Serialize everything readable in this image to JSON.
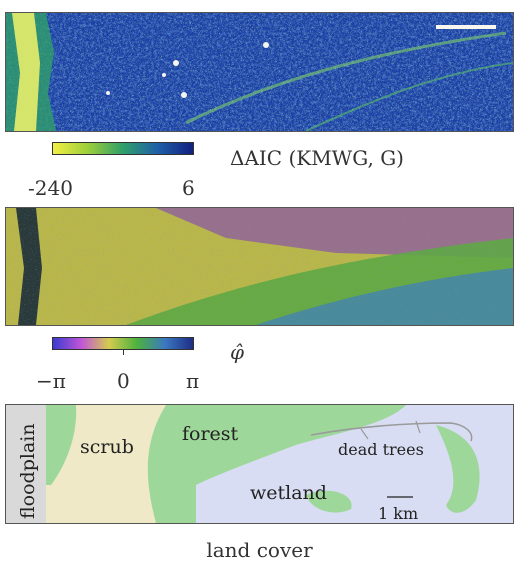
{
  "aic_panel": {
    "colorbar": {
      "min_label": "-240",
      "max_label": "6",
      "title": "ΔAIC (KMWG, G)",
      "colors": [
        "#f2ef44",
        "#9ccf3a",
        "#2f9f6a",
        "#1f5fa8",
        "#10207e"
      ]
    }
  },
  "phi_panel": {
    "colorbar": {
      "tick_labels": [
        "−π",
        "0",
        "π"
      ],
      "title": "φ̂",
      "colors": [
        "#3a3bd0",
        "#c055d8",
        "#d4cc4f",
        "#4cb23e",
        "#3b78c0",
        "#1d2d86"
      ]
    }
  },
  "land_cover": {
    "caption": "land cover",
    "regions": [
      {
        "label": "floodplain",
        "color": "#d9d9d9"
      },
      {
        "label": "scrub",
        "color": "#efe9c8"
      },
      {
        "label": "forest",
        "color": "#9ed79a"
      },
      {
        "label": "wetland",
        "color": "#d8ddf3"
      },
      {
        "label": "dead trees",
        "color": "#9a9a9a"
      }
    ],
    "scale_bar_label": "1 km"
  }
}
